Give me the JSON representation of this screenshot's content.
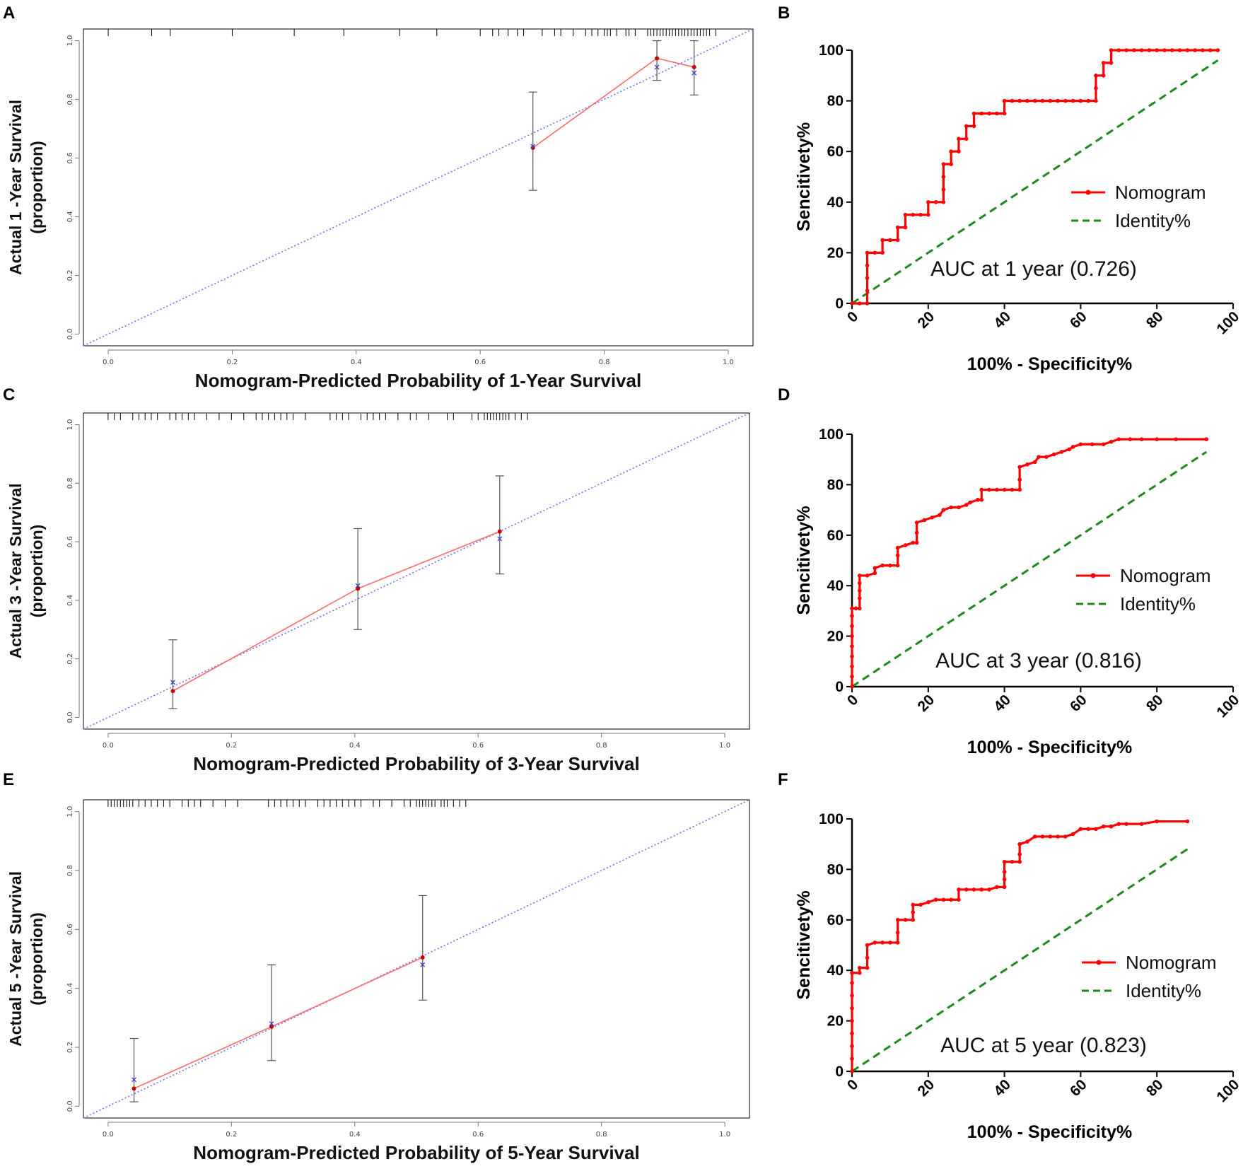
{
  "colors": {
    "calibration_line": "#ff6a6a",
    "calibration_point": "#cc0000",
    "corrected_marker": "#3b3bd6",
    "ideal_line": "#6b6bff",
    "error_bar": "#555555",
    "rug": "#000000",
    "roc_curve": "#ff0000",
    "identity_line": "#1a8a1a",
    "frame": "#000000"
  },
  "chart_data": [
    {
      "panel": "A",
      "type": "line",
      "subtype": "calibration",
      "xlabel": "Nomogram-Predicted Probability of 1-Year Survival",
      "ylabel_line1": "Actual 1 -Year Survival",
      "ylabel_line2": "(proportion)",
      "xlim": [
        -0.04,
        1.04
      ],
      "ylim": [
        -0.04,
        1.04
      ],
      "x_ticks": [
        0.0,
        0.2,
        0.4,
        0.6,
        0.8,
        1.0
      ],
      "x_tick_labels": [
        "0.0",
        "0.2",
        "0.4",
        "0.6",
        "0.8",
        "1.0"
      ],
      "y_ticks": [
        0.0,
        0.2,
        0.4,
        0.6,
        0.8,
        1.0
      ],
      "y_tick_labels": [
        "0.0",
        "0.2",
        "0.4",
        "0.6",
        "0.8",
        "1.0"
      ],
      "ideal_line": [
        [
          -0.04,
          -0.04
        ],
        [
          1.04,
          1.04
        ]
      ],
      "points": [
        {
          "x": 0.685,
          "y": 0.635,
          "lower": 0.49,
          "upper": 0.825,
          "corrected": 0.64
        },
        {
          "x": 0.885,
          "y": 0.94,
          "lower": 0.865,
          "upper": 1.0,
          "corrected": 0.91
        },
        {
          "x": 0.945,
          "y": 0.91,
          "lower": 0.815,
          "upper": 1.0,
          "corrected": 0.89
        }
      ],
      "rug": [
        0.0,
        0.07,
        0.1,
        0.2,
        0.3,
        0.38,
        0.47,
        0.53,
        0.6,
        0.62,
        0.63,
        0.645,
        0.66,
        0.67,
        0.7,
        0.72,
        0.73,
        0.75,
        0.77,
        0.78,
        0.79,
        0.8,
        0.805,
        0.81,
        0.82,
        0.835,
        0.84,
        0.85,
        0.87,
        0.875,
        0.88,
        0.885,
        0.89,
        0.895,
        0.9,
        0.905,
        0.91,
        0.915,
        0.92,
        0.925,
        0.93,
        0.935,
        0.94,
        0.945,
        0.95,
        0.955,
        0.96,
        0.965,
        0.97,
        0.98
      ]
    },
    {
      "panel": "B",
      "type": "line",
      "subtype": "roc",
      "xlabel": "100% - Specificity%",
      "ylabel": "Sencitivety%",
      "xlim": [
        0,
        100
      ],
      "ylim": [
        0,
        100
      ],
      "x_ticks": [
        0,
        20,
        40,
        60,
        80,
        100
      ],
      "x_tick_labels": [
        "0",
        "20",
        "40",
        "60",
        "80",
        "100"
      ],
      "y_ticks": [
        0,
        20,
        40,
        60,
        80,
        100
      ],
      "y_tick_labels": [
        "0",
        "20",
        "40",
        "60",
        "80",
        "100"
      ],
      "legend": {
        "nomogram": "Nomogram",
        "identity": "Identity%"
      },
      "legend_position": "middle-right",
      "auc_label": "AUC at 1 year (0.726)",
      "identity": [
        [
          0,
          0
        ],
        [
          96,
          96
        ]
      ],
      "roc_points": [
        [
          0,
          0
        ],
        [
          2,
          0
        ],
        [
          4,
          0
        ],
        [
          4,
          5
        ],
        [
          4,
          10
        ],
        [
          4,
          15
        ],
        [
          4,
          20
        ],
        [
          6,
          20
        ],
        [
          8,
          20
        ],
        [
          8,
          25
        ],
        [
          10,
          25
        ],
        [
          12,
          25
        ],
        [
          12,
          30
        ],
        [
          14,
          30
        ],
        [
          14,
          35
        ],
        [
          16,
          35
        ],
        [
          18,
          35
        ],
        [
          20,
          35
        ],
        [
          20,
          40
        ],
        [
          22,
          40
        ],
        [
          24,
          40
        ],
        [
          24,
          45
        ],
        [
          24,
          50
        ],
        [
          24,
          55
        ],
        [
          26,
          55
        ],
        [
          26,
          60
        ],
        [
          28,
          60
        ],
        [
          28,
          65
        ],
        [
          30,
          65
        ],
        [
          30,
          70
        ],
        [
          32,
          70
        ],
        [
          32,
          75
        ],
        [
          34,
          75
        ],
        [
          36,
          75
        ],
        [
          38,
          75
        ],
        [
          40,
          75
        ],
        [
          40,
          80
        ],
        [
          42,
          80
        ],
        [
          44,
          80
        ],
        [
          46,
          80
        ],
        [
          48,
          80
        ],
        [
          50,
          80
        ],
        [
          52,
          80
        ],
        [
          54,
          80
        ],
        [
          56,
          80
        ],
        [
          58,
          80
        ],
        [
          60,
          80
        ],
        [
          62,
          80
        ],
        [
          64,
          80
        ],
        [
          64,
          85
        ],
        [
          64,
          90
        ],
        [
          66,
          90
        ],
        [
          66,
          95
        ],
        [
          68,
          95
        ],
        [
          68,
          100
        ],
        [
          70,
          100
        ],
        [
          72,
          100
        ],
        [
          74,
          100
        ],
        [
          76,
          100
        ],
        [
          78,
          100
        ],
        [
          80,
          100
        ],
        [
          82,
          100
        ],
        [
          84,
          100
        ],
        [
          86,
          100
        ],
        [
          88,
          100
        ],
        [
          90,
          100
        ],
        [
          92,
          100
        ],
        [
          94,
          100
        ],
        [
          96,
          100
        ]
      ]
    },
    {
      "panel": "C",
      "type": "line",
      "subtype": "calibration",
      "xlabel": "Nomogram-Predicted Probability of 3-Year Survival",
      "ylabel_line1": "Actual 3 -Year Survival",
      "ylabel_line2": "(proportion)",
      "xlim": [
        -0.04,
        1.04
      ],
      "ylim": [
        -0.04,
        1.04
      ],
      "x_ticks": [
        0.0,
        0.2,
        0.4,
        0.6,
        0.8,
        1.0
      ],
      "x_tick_labels": [
        "0.0",
        "0.2",
        "0.4",
        "0.6",
        "0.8",
        "1.0"
      ],
      "y_ticks": [
        0.0,
        0.2,
        0.4,
        0.6,
        0.8,
        1.0
      ],
      "y_tick_labels": [
        "0.0",
        "0.2",
        "0.4",
        "0.6",
        "0.8",
        "1.0"
      ],
      "ideal_line": [
        [
          -0.04,
          -0.04
        ],
        [
          1.04,
          1.04
        ]
      ],
      "points": [
        {
          "x": 0.105,
          "y": 0.09,
          "lower": 0.03,
          "upper": 0.265,
          "corrected": 0.12
        },
        {
          "x": 0.405,
          "y": 0.44,
          "lower": 0.3,
          "upper": 0.645,
          "corrected": 0.45
        },
        {
          "x": 0.635,
          "y": 0.635,
          "lower": 0.49,
          "upper": 0.825,
          "corrected": 0.61
        }
      ],
      "rug": [
        0.0,
        0.01,
        0.02,
        0.04,
        0.05,
        0.06,
        0.07,
        0.08,
        0.1,
        0.11,
        0.12,
        0.13,
        0.14,
        0.16,
        0.18,
        0.2,
        0.22,
        0.24,
        0.25,
        0.26,
        0.27,
        0.28,
        0.29,
        0.3,
        0.32,
        0.36,
        0.37,
        0.38,
        0.39,
        0.41,
        0.42,
        0.43,
        0.44,
        0.45,
        0.47,
        0.49,
        0.5,
        0.52,
        0.55,
        0.56,
        0.59,
        0.6,
        0.61,
        0.615,
        0.62,
        0.625,
        0.63,
        0.635,
        0.64,
        0.645,
        0.65,
        0.66,
        0.67,
        0.68
      ]
    },
    {
      "panel": "D",
      "type": "line",
      "subtype": "roc",
      "xlabel": "100% - Specificity%",
      "ylabel": "Sencitivety%",
      "xlim": [
        0,
        100
      ],
      "ylim": [
        0,
        100
      ],
      "x_ticks": [
        0,
        20,
        40,
        60,
        80,
        100
      ],
      "x_tick_labels": [
        "0",
        "20",
        "40",
        "60",
        "80",
        "100"
      ],
      "y_ticks": [
        0,
        20,
        40,
        60,
        80,
        100
      ],
      "y_tick_labels": [
        "0",
        "20",
        "40",
        "60",
        "80",
        "100"
      ],
      "legend": {
        "nomogram": "Nomogram",
        "identity": "Identity%"
      },
      "legend_position": "middle-right",
      "auc_label": "AUC at 3 year (0.816)",
      "identity": [
        [
          0,
          0
        ],
        [
          93,
          93
        ]
      ],
      "roc_points": [
        [
          0,
          0
        ],
        [
          0,
          4
        ],
        [
          0,
          8
        ],
        [
          0,
          12
        ],
        [
          0,
          16
        ],
        [
          0,
          20
        ],
        [
          0,
          24
        ],
        [
          0,
          28
        ],
        [
          0,
          31
        ],
        [
          1,
          31
        ],
        [
          2,
          31
        ],
        [
          2,
          35
        ],
        [
          2,
          38
        ],
        [
          2,
          41
        ],
        [
          2,
          44
        ],
        [
          4,
          44
        ],
        [
          6,
          45
        ],
        [
          6,
          47
        ],
        [
          8,
          48
        ],
        [
          10,
          48
        ],
        [
          12,
          48
        ],
        [
          12,
          52
        ],
        [
          12,
          55
        ],
        [
          14,
          56
        ],
        [
          16,
          57
        ],
        [
          17,
          57
        ],
        [
          17,
          61
        ],
        [
          17,
          65
        ],
        [
          19,
          66
        ],
        [
          21,
          67
        ],
        [
          23,
          68
        ],
        [
          24,
          70
        ],
        [
          26,
          71
        ],
        [
          28,
          71
        ],
        [
          30,
          72
        ],
        [
          31,
          73
        ],
        [
          33,
          74
        ],
        [
          34,
          74
        ],
        [
          34,
          78
        ],
        [
          36,
          78
        ],
        [
          38,
          78
        ],
        [
          40,
          78
        ],
        [
          42,
          78
        ],
        [
          44,
          78
        ],
        [
          44,
          82
        ],
        [
          44,
          87
        ],
        [
          46,
          88
        ],
        [
          48,
          89
        ],
        [
          49,
          91
        ],
        [
          51,
          91
        ],
        [
          53,
          92
        ],
        [
          55,
          93
        ],
        [
          57,
          94
        ],
        [
          58,
          95
        ],
        [
          60,
          96
        ],
        [
          63,
          96
        ],
        [
          66,
          96
        ],
        [
          68,
          97
        ],
        [
          70,
          98
        ],
        [
          73,
          98
        ],
        [
          76,
          98
        ],
        [
          80,
          98
        ],
        [
          85,
          98
        ],
        [
          93,
          98
        ]
      ]
    },
    {
      "panel": "E",
      "type": "line",
      "subtype": "calibration",
      "xlabel": "Nomogram-Predicted Probability of 5-Year Survival",
      "ylabel_line1": "Actual 5 -Year Survival",
      "ylabel_line2": "(proportion)",
      "xlim": [
        -0.04,
        1.04
      ],
      "ylim": [
        -0.04,
        1.04
      ],
      "x_ticks": [
        0.0,
        0.2,
        0.4,
        0.6,
        0.8,
        1.0
      ],
      "x_tick_labels": [
        "0.0",
        "0.2",
        "0.4",
        "0.6",
        "0.8",
        "1.0"
      ],
      "y_ticks": [
        0.0,
        0.2,
        0.4,
        0.6,
        0.8,
        1.0
      ],
      "y_tick_labels": [
        "0.0",
        "0.2",
        "0.4",
        "0.6",
        "0.8",
        "1.0"
      ],
      "ideal_line": [
        [
          -0.04,
          -0.04
        ],
        [
          1.04,
          1.04
        ]
      ],
      "points": [
        {
          "x": 0.042,
          "y": 0.06,
          "lower": 0.015,
          "upper": 0.23,
          "corrected": 0.09
        },
        {
          "x": 0.265,
          "y": 0.27,
          "lower": 0.155,
          "upper": 0.48,
          "corrected": 0.28
        },
        {
          "x": 0.51,
          "y": 0.505,
          "lower": 0.36,
          "upper": 0.715,
          "corrected": 0.48
        }
      ],
      "rug": [
        0.0,
        0.005,
        0.01,
        0.015,
        0.02,
        0.025,
        0.03,
        0.035,
        0.04,
        0.05,
        0.06,
        0.07,
        0.08,
        0.09,
        0.1,
        0.12,
        0.13,
        0.14,
        0.15,
        0.17,
        0.19,
        0.21,
        0.21,
        0.26,
        0.27,
        0.28,
        0.29,
        0.3,
        0.31,
        0.32,
        0.34,
        0.35,
        0.36,
        0.37,
        0.38,
        0.39,
        0.4,
        0.41,
        0.43,
        0.44,
        0.46,
        0.48,
        0.49,
        0.5,
        0.505,
        0.51,
        0.515,
        0.52,
        0.525,
        0.53,
        0.54,
        0.545,
        0.55,
        0.56,
        0.57,
        0.58
      ]
    },
    {
      "panel": "F",
      "type": "line",
      "subtype": "roc",
      "xlabel": "100% - Specificity%",
      "ylabel": "Sencitivety%",
      "xlim": [
        0,
        100
      ],
      "ylim": [
        0,
        100
      ],
      "x_ticks": [
        0,
        20,
        40,
        60,
        80,
        100
      ],
      "x_tick_labels": [
        "0",
        "20",
        "40",
        "60",
        "80",
        "100"
      ],
      "y_ticks": [
        0,
        20,
        40,
        60,
        80,
        100
      ],
      "y_tick_labels": [
        "0",
        "20",
        "40",
        "60",
        "80",
        "100"
      ],
      "legend": {
        "nomogram": "Nomogram",
        "identity": "Identity%"
      },
      "legend_position": "middle-right",
      "auc_label": "AUC at 5 year (0.823)",
      "identity": [
        [
          0,
          0
        ],
        [
          88,
          88
        ]
      ],
      "roc_points": [
        [
          0,
          0
        ],
        [
          0,
          5
        ],
        [
          0,
          10
        ],
        [
          0,
          15
        ],
        [
          0,
          20
        ],
        [
          0,
          25
        ],
        [
          0,
          30
        ],
        [
          0,
          35
        ],
        [
          0,
          39
        ],
        [
          2,
          39
        ],
        [
          2,
          41
        ],
        [
          4,
          41
        ],
        [
          4,
          45
        ],
        [
          4,
          50
        ],
        [
          6,
          51
        ],
        [
          8,
          51
        ],
        [
          10,
          51
        ],
        [
          12,
          51
        ],
        [
          12,
          55
        ],
        [
          12,
          60
        ],
        [
          14,
          60
        ],
        [
          16,
          60
        ],
        [
          16,
          63
        ],
        [
          16,
          66
        ],
        [
          18,
          66
        ],
        [
          20,
          67
        ],
        [
          22,
          68
        ],
        [
          24,
          68
        ],
        [
          26,
          68
        ],
        [
          28,
          68
        ],
        [
          28,
          72
        ],
        [
          30,
          72
        ],
        [
          32,
          72
        ],
        [
          34,
          72
        ],
        [
          36,
          72
        ],
        [
          38,
          73
        ],
        [
          40,
          73
        ],
        [
          40,
          76
        ],
        [
          40,
          79
        ],
        [
          40,
          83
        ],
        [
          42,
          83
        ],
        [
          44,
          83
        ],
        [
          44,
          86
        ],
        [
          44,
          90
        ],
        [
          46,
          91
        ],
        [
          48,
          93
        ],
        [
          50,
          93
        ],
        [
          52,
          93
        ],
        [
          54,
          93
        ],
        [
          56,
          93
        ],
        [
          58,
          94
        ],
        [
          60,
          96
        ],
        [
          62,
          96
        ],
        [
          64,
          96
        ],
        [
          66,
          97
        ],
        [
          68,
          97
        ],
        [
          70,
          98
        ],
        [
          72,
          98
        ],
        [
          76,
          98
        ],
        [
          80,
          99
        ],
        [
          88,
          99
        ]
      ]
    }
  ]
}
